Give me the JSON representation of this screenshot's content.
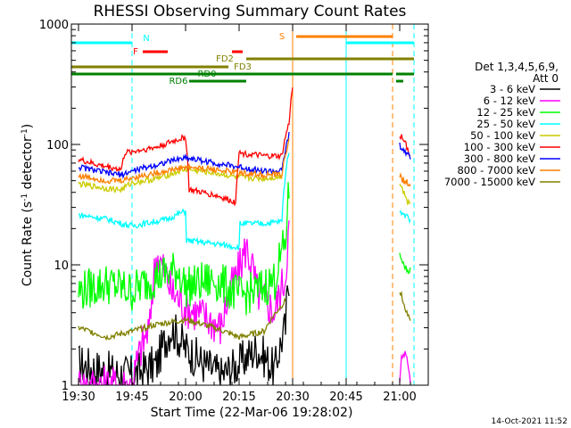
{
  "chart_data": {
    "type": "line",
    "title": "RHESSI Observing Summary Count Rates",
    "xlabel": "Start Time (22-Mar-06 19:28:02)",
    "ylabel": "Count Rate (s^-1 detector^-1)",
    "ylabel_main": "Count Rate (s",
    "ylabel_sup1": "-1",
    "ylabel_mid": " detector",
    "ylabel_sup2": "-1",
    "ylabel_end": ")",
    "y_scale": "log",
    "ylim": [
      1,
      1000
    ],
    "xlim": [
      "19:28",
      "21:08"
    ],
    "x_ticks": [
      "19:30",
      "19:45",
      "20:00",
      "20:15",
      "20:30",
      "20:45",
      "21:00"
    ],
    "y_ticks": [
      "1",
      "10",
      "100",
      "1000"
    ],
    "legend_header": [
      "Det 1,3,4,5,6,9,",
      "Att 0"
    ],
    "legend_position": "right",
    "series": [
      {
        "name": "3 - 6 keV",
        "color": "#000000",
        "t": [
          "19:30",
          "19:38",
          "19:45",
          "19:52",
          "19:56",
          "20:00",
          "20:05",
          "20:10",
          "20:15",
          "20:20",
          "20:25",
          "20:28",
          "20:29"
        ],
        "values": [
          1.5,
          1.3,
          1.2,
          1.5,
          3.0,
          2.0,
          1.5,
          1.2,
          1.5,
          2.0,
          1.3,
          3.0,
          8.0
        ]
      },
      {
        "name": "6 - 12 keV",
        "color": "#ff00ff",
        "t": [
          "19:30",
          "19:45",
          "19:50",
          "19:52",
          "19:56",
          "20:00",
          "20:10",
          "20:15",
          "20:17",
          "20:20",
          "20:25",
          "20:28",
          "20:29"
        ],
        "values": [
          1.0,
          1.0,
          3.0,
          12.0,
          6.0,
          4.5,
          3.0,
          9.0,
          14.0,
          6.0,
          4.0,
          8.0,
          20.0
        ]
      },
      {
        "name": "12 - 25 keV",
        "color": "#00ff00",
        "t": [
          "19:30",
          "19:38",
          "19:45",
          "19:52",
          "19:58",
          "20:00",
          "20:08",
          "20:15",
          "20:20",
          "20:25",
          "20:28",
          "20:29"
        ],
        "values": [
          6.0,
          7.0,
          6.0,
          8.0,
          9.0,
          6.5,
          7.5,
          5.5,
          6.0,
          7.5,
          15.0,
          40.0
        ]
      },
      {
        "name": "25 - 50 keV",
        "color": "#00ffff",
        "t": [
          "19:30",
          "19:38",
          "19:42",
          "19:45",
          "19:55",
          "20:00",
          "20:00",
          "20:08",
          "20:15",
          "20:15",
          "20:22",
          "20:27",
          "20:29"
        ],
        "values": [
          26,
          24,
          22,
          21,
          24,
          28,
          16,
          15,
          14,
          22,
          22,
          23,
          90
        ]
      },
      {
        "name": "50 - 100 keV",
        "color": "#cccc00",
        "t": [
          "19:30",
          "19:38",
          "19:42",
          "19:45",
          "19:52",
          "20:00",
          "20:08",
          "20:15",
          "20:22",
          "20:27"
        ],
        "values": [
          47,
          43,
          42,
          48,
          52,
          62,
          58,
          53,
          52,
          54
        ]
      },
      {
        "name": "100 - 300 keV",
        "color": "#ff0000",
        "t": [
          "19:30",
          "19:35",
          "19:42",
          "19:43",
          "19:52",
          "20:00",
          "20:01",
          "20:08",
          "20:14",
          "20:15",
          "20:22",
          "20:27",
          "20:29",
          "20:30"
        ],
        "values": [
          75,
          68,
          62,
          85,
          95,
          115,
          42,
          38,
          33,
          85,
          80,
          80,
          150,
          300
        ]
      },
      {
        "name": "300 - 800 keV",
        "color": "#0000ff",
        "t": [
          "19:30",
          "19:38",
          "19:42",
          "19:45",
          "19:52",
          "20:00",
          "20:08",
          "20:15",
          "20:22",
          "20:27",
          "20:29"
        ],
        "values": [
          65,
          58,
          56,
          60,
          68,
          78,
          70,
          65,
          60,
          60,
          120
        ]
      },
      {
        "name": "800 - 7000 keV",
        "color": "#ff8000",
        "t": [
          "19:30",
          "19:38",
          "19:42",
          "19:45",
          "19:52",
          "20:00",
          "20:08",
          "20:15",
          "20:22",
          "20:27",
          "20:29"
        ],
        "values": [
          55,
          50,
          50,
          53,
          58,
          65,
          62,
          58,
          56,
          56,
          110
        ]
      },
      {
        "name": "7000 - 15000 keV",
        "color": "#808000",
        "t": [
          "19:30",
          "19:38",
          "19:45",
          "19:52",
          "20:00",
          "20:08",
          "20:15",
          "20:22",
          "20:28"
        ],
        "values": [
          3.0,
          2.5,
          2.8,
          3.2,
          3.5,
          3.0,
          2.5,
          2.8,
          5.0
        ]
      }
    ],
    "late_segments": [
      {
        "color": "#ff0000",
        "t": [
          "21:00",
          "21:01",
          "21:02",
          "21:03"
        ],
        "values": [
          120,
          110,
          95,
          80
        ]
      },
      {
        "color": "#0000ff",
        "t": [
          "21:00",
          "21:01",
          "21:02",
          "21:03"
        ],
        "values": [
          100,
          90,
          85,
          80
        ]
      },
      {
        "color": "#ff8000",
        "t": [
          "21:00",
          "21:01",
          "21:02",
          "21:03"
        ],
        "values": [
          55,
          50,
          48,
          45
        ]
      },
      {
        "color": "#cccc00",
        "t": [
          "21:00",
          "21:01",
          "21:02",
          "21:03"
        ],
        "values": [
          45,
          40,
          35,
          30
        ]
      },
      {
        "color": "#00ffff",
        "t": [
          "21:00",
          "21:01",
          "21:02",
          "21:03"
        ],
        "values": [
          28,
          26,
          25,
          24
        ]
      },
      {
        "color": "#00ff00",
        "t": [
          "21:00",
          "21:01",
          "21:02",
          "21:03"
        ],
        "values": [
          12,
          10,
          9,
          9
        ]
      },
      {
        "color": "#808000",
        "t": [
          "21:00",
          "21:01",
          "21:02",
          "21:03"
        ],
        "values": [
          6,
          5,
          4,
          3.5
        ]
      },
      {
        "color": "#ff00ff",
        "t": [
          "21:00",
          "21:00.5",
          "21:01",
          "21:02",
          "21:03"
        ],
        "values": [
          1.0,
          1.8,
          1.8,
          1.8,
          1.0
        ]
      }
    ],
    "state_bars": [
      {
        "label": "N",
        "color": "#00ffff",
        "segments": [
          [
            "19:28",
            "19:45"
          ],
          [
            "20:45",
            "21:04"
          ]
        ]
      },
      {
        "label": "F",
        "color": "#ff0000",
        "segments": [
          [
            "19:48",
            "19:55"
          ],
          [
            "20:13",
            "20:16"
          ]
        ]
      },
      {
        "label": "S",
        "color": "#ff8000",
        "segments": [
          [
            "20:31",
            "20:58"
          ]
        ]
      },
      {
        "label": "FD2",
        "color": "#808000",
        "segments": [
          [
            "20:17",
            "21:04"
          ]
        ]
      },
      {
        "label": "FD3",
        "color": "#808000",
        "segments": [
          [
            "19:28",
            "20:12"
          ]
        ]
      },
      {
        "label": "RD0",
        "color": "#008000",
        "segments": [
          [
            "19:28",
            "20:58"
          ],
          [
            "20:59",
            "21:04"
          ]
        ]
      },
      {
        "label": "RD6",
        "color": "#008000",
        "segments": [
          [
            "20:01",
            "20:17"
          ],
          [
            "20:59",
            "21:01"
          ]
        ]
      }
    ],
    "vlines_solid": [
      {
        "t": "19:28",
        "color": "#00ffff"
      },
      {
        "t": "20:30",
        "color": "#ff8000"
      },
      {
        "t": "20:45",
        "color": "#00ffff"
      }
    ],
    "vlines_dashed": [
      {
        "t": "19:45",
        "color": "#00ffff"
      },
      {
        "t": "20:58",
        "color": "#ff8000"
      },
      {
        "t": "21:04",
        "color": "#00ffff"
      }
    ],
    "data_gaps": [
      [
        "20:30",
        "20:59"
      ]
    ]
  },
  "footer": {
    "date_stamp": "14-Oct-2021 11:52"
  }
}
